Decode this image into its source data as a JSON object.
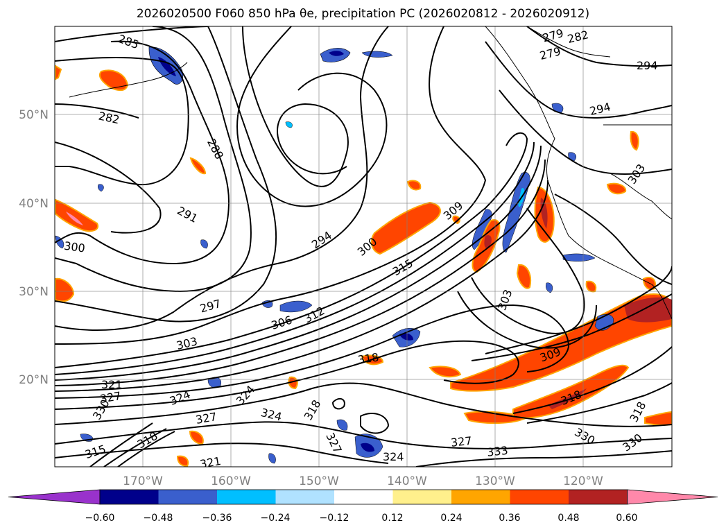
{
  "title": "2026020500 F060 850 hPa θe, precipitation PC (2026020812 - 2026020912)",
  "lat_labels": [
    "50°N",
    "40°N",
    "30°N",
    "20°N"
  ],
  "lon_labels": [
    "170°W",
    "160°W",
    "150°W",
    "140°W",
    "130°W",
    "120°W"
  ],
  "contour_labels": [
    "285",
    "282",
    "288",
    "291",
    "294",
    "300",
    "297",
    "303",
    "306",
    "312",
    "300",
    "309",
    "315",
    "303",
    "309",
    "318",
    "321",
    "327",
    "330",
    "324",
    "324",
    "327",
    "318",
    "315",
    "318",
    "321",
    "327",
    "324",
    "327",
    "333",
    "324",
    "318",
    "330",
    "318",
    "330",
    "294",
    "294",
    "303",
    "279",
    "282",
    "279"
  ],
  "colorbar": {
    "ticks": [
      "−0.60",
      "−0.48",
      "−0.36",
      "−0.24",
      "−0.12",
      "0.12",
      "0.24",
      "0.36",
      "0.48",
      "0.60"
    ],
    "colors": [
      "#9932cc",
      "#00008b",
      "#3a5fcd",
      "#00bfff",
      "#b0e2ff",
      "#ffffff",
      "#fff08c",
      "#ffa500",
      "#ff4500",
      "#b22222",
      "#ff88aa"
    ]
  }
}
